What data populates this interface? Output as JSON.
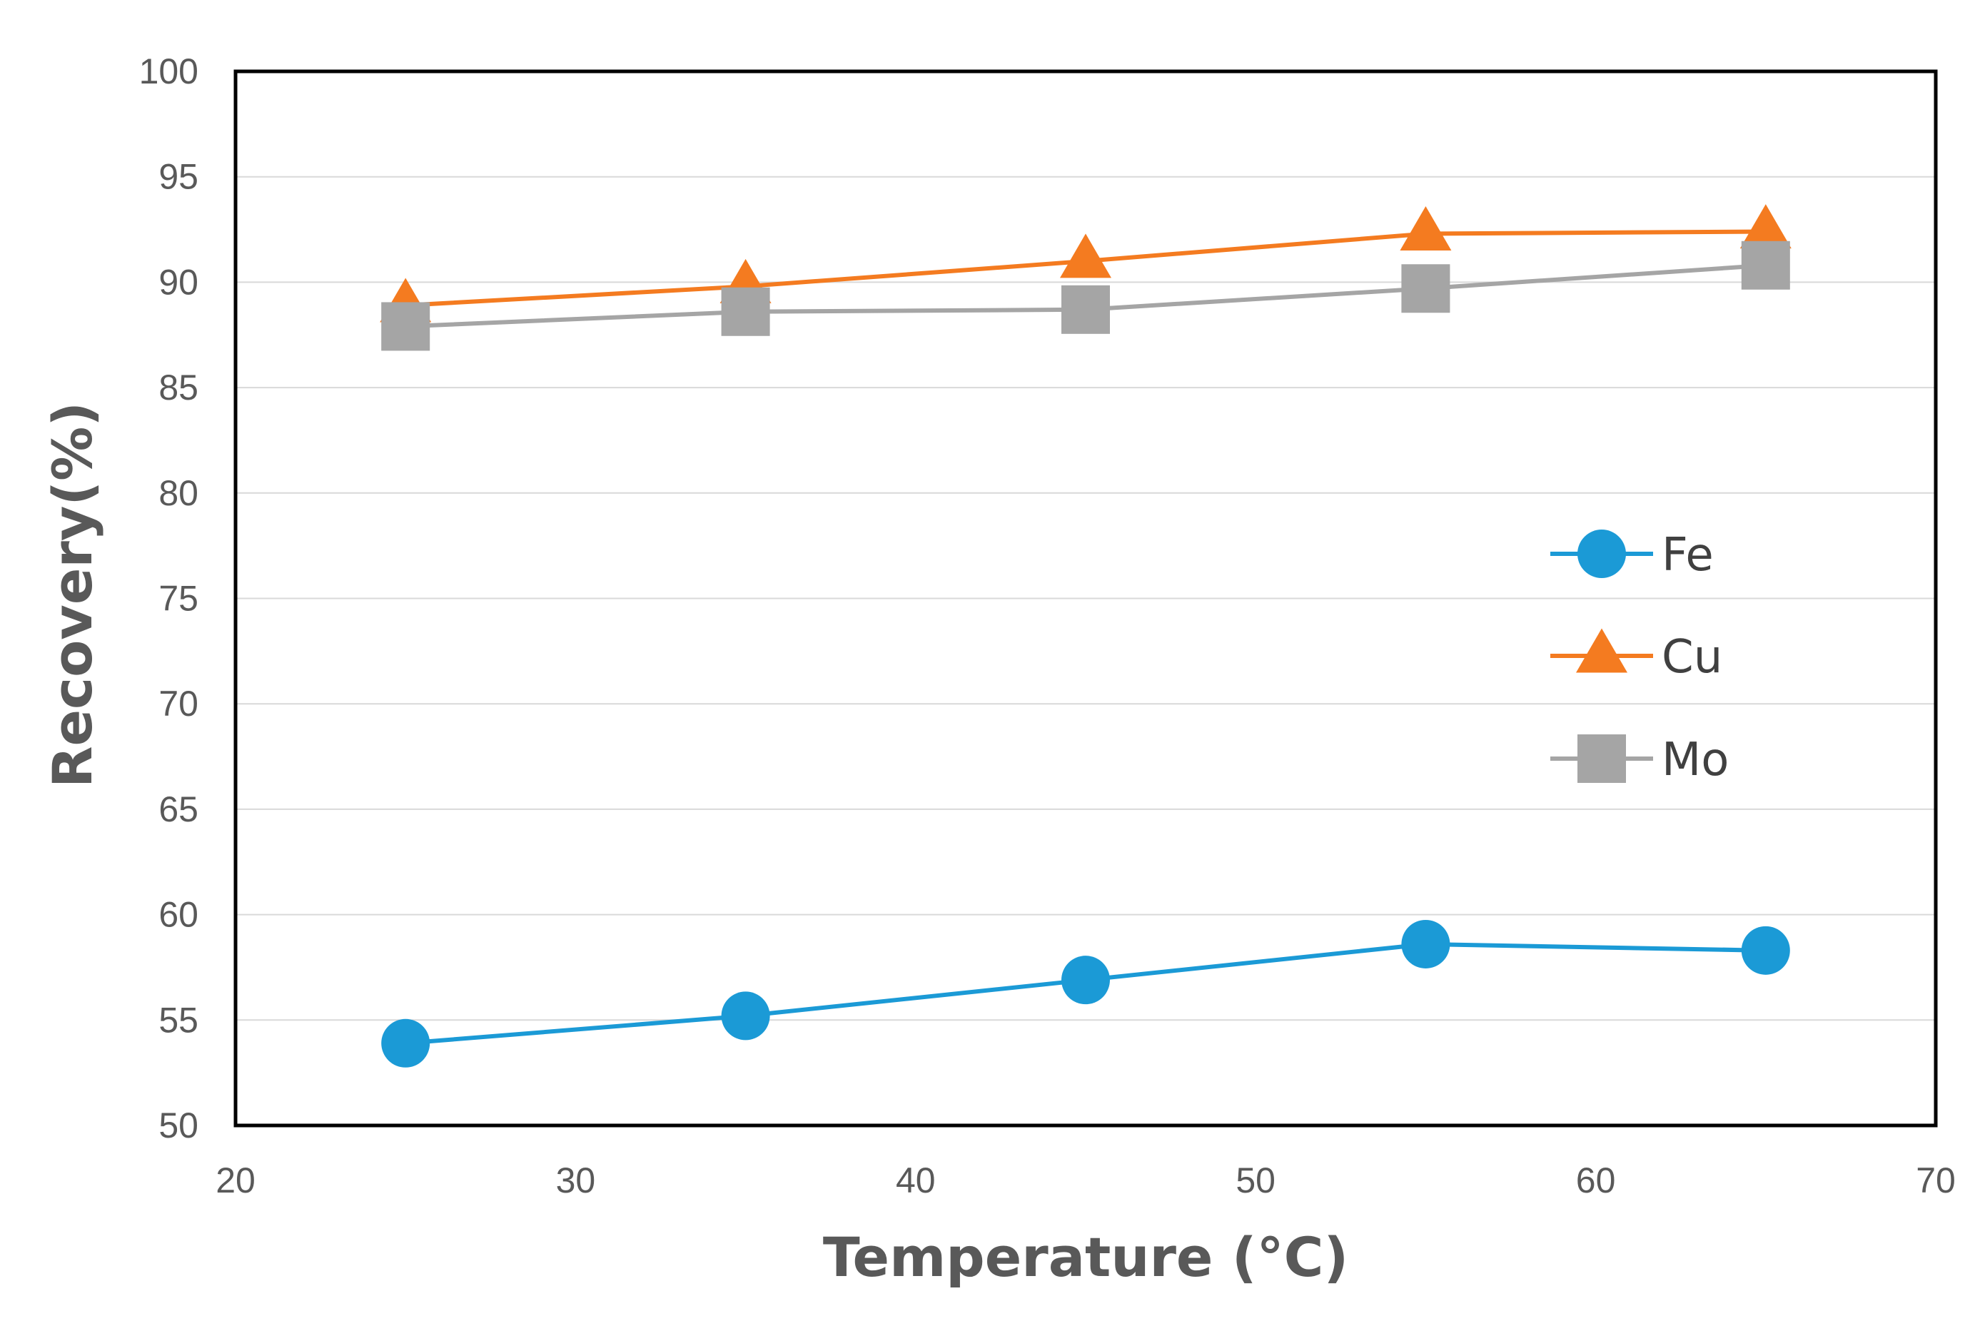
{
  "chart_data": {
    "type": "line",
    "title": "",
    "xlabel": "Temperature (°C)",
    "ylabel": "Recovery(%)",
    "xlim": [
      20,
      70
    ],
    "ylim": [
      50,
      100
    ],
    "xticks": [
      20,
      30,
      40,
      50,
      60,
      70
    ],
    "yticks": [
      50,
      55,
      60,
      65,
      70,
      75,
      80,
      85,
      90,
      95,
      100
    ],
    "grid": "horizontal",
    "legend_position": "right",
    "x": [
      25,
      35,
      45,
      55,
      65
    ],
    "series": [
      {
        "name": "Fe",
        "marker": "circle",
        "color": "#1b9ad6",
        "values": [
          53.9,
          55.2,
          56.9,
          58.6,
          58.3
        ]
      },
      {
        "name": "Cu",
        "marker": "triangle",
        "color": "#f47b20",
        "values": [
          88.9,
          89.8,
          91.0,
          92.3,
          92.4
        ]
      },
      {
        "name": "Mo",
        "marker": "square",
        "color": "#a5a5a5",
        "values": [
          87.9,
          88.6,
          88.7,
          89.7,
          90.8
        ]
      }
    ]
  }
}
